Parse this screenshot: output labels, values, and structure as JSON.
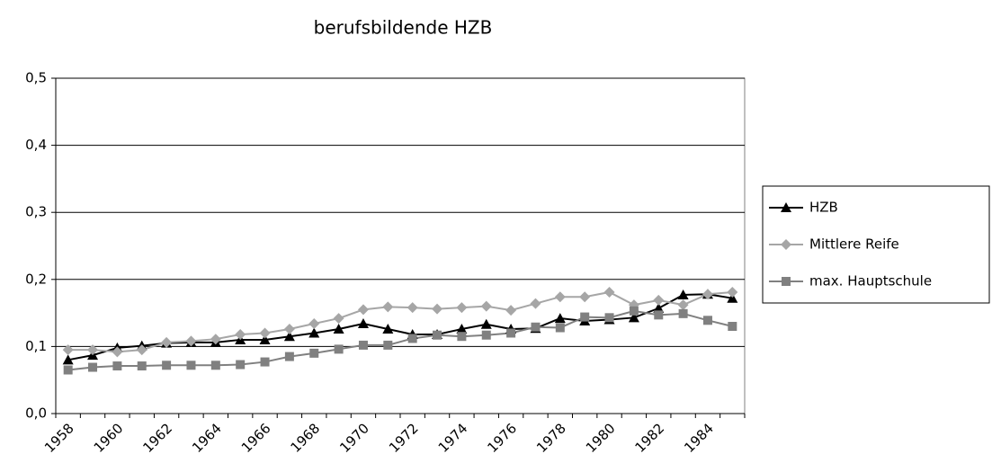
{
  "chart_data": {
    "type": "line",
    "title": "berufsbildende HZB",
    "categories": [
      "1958",
      null,
      "1960",
      null,
      "1962",
      null,
      "1964",
      null,
      "1966",
      null,
      "1968",
      null,
      "1970",
      null,
      "1972",
      null,
      "1974",
      null,
      "1976",
      null,
      "1978",
      null,
      "1980",
      null,
      "1982",
      null,
      "1984",
      null
    ],
    "series": [
      {
        "name": "HZB",
        "color": "#000000",
        "marker": "triangle",
        "values": [
          0.08,
          0.087,
          0.098,
          0.101,
          0.105,
          0.106,
          0.106,
          0.11,
          0.11,
          0.115,
          0.12,
          0.126,
          0.134,
          0.126,
          0.118,
          0.118,
          0.126,
          0.133,
          0.126,
          0.127,
          0.142,
          0.138,
          0.14,
          0.143,
          0.157,
          0.177,
          0.178,
          0.172
        ]
      },
      {
        "name": "Mittlere Reife",
        "color": "#a6a6a6",
        "marker": "diamond",
        "values": [
          0.095,
          0.095,
          0.092,
          0.095,
          0.106,
          0.108,
          0.111,
          0.118,
          0.12,
          0.126,
          0.134,
          0.142,
          0.155,
          0.159,
          0.158,
          0.156,
          0.158,
          0.16,
          0.154,
          0.164,
          0.174,
          0.174,
          0.181,
          0.162,
          0.169,
          0.162,
          0.178,
          0.181
        ]
      },
      {
        "name": "max. Hauptschule",
        "color": "#808080",
        "marker": "square",
        "values": [
          0.065,
          0.069,
          0.071,
          0.071,
          0.072,
          0.072,
          0.072,
          0.073,
          0.077,
          0.085,
          0.09,
          0.096,
          0.102,
          0.102,
          0.112,
          0.117,
          0.115,
          0.117,
          0.12,
          0.129,
          0.128,
          0.144,
          0.143,
          0.153,
          0.147,
          0.149,
          0.139,
          0.13
        ]
      }
    ],
    "ylim": [
      0,
      0.5
    ],
    "yticks": [
      {
        "value": 0,
        "label": "0,0"
      },
      {
        "value": 0.1,
        "label": "0,1"
      },
      {
        "value": 0.2,
        "label": "0,2"
      },
      {
        "value": 0.3,
        "label": "0,3"
      },
      {
        "value": 0.4,
        "label": "0,4"
      },
      {
        "value": 0.5,
        "label": "0,5"
      }
    ],
    "grid": true,
    "legend": "right"
  }
}
